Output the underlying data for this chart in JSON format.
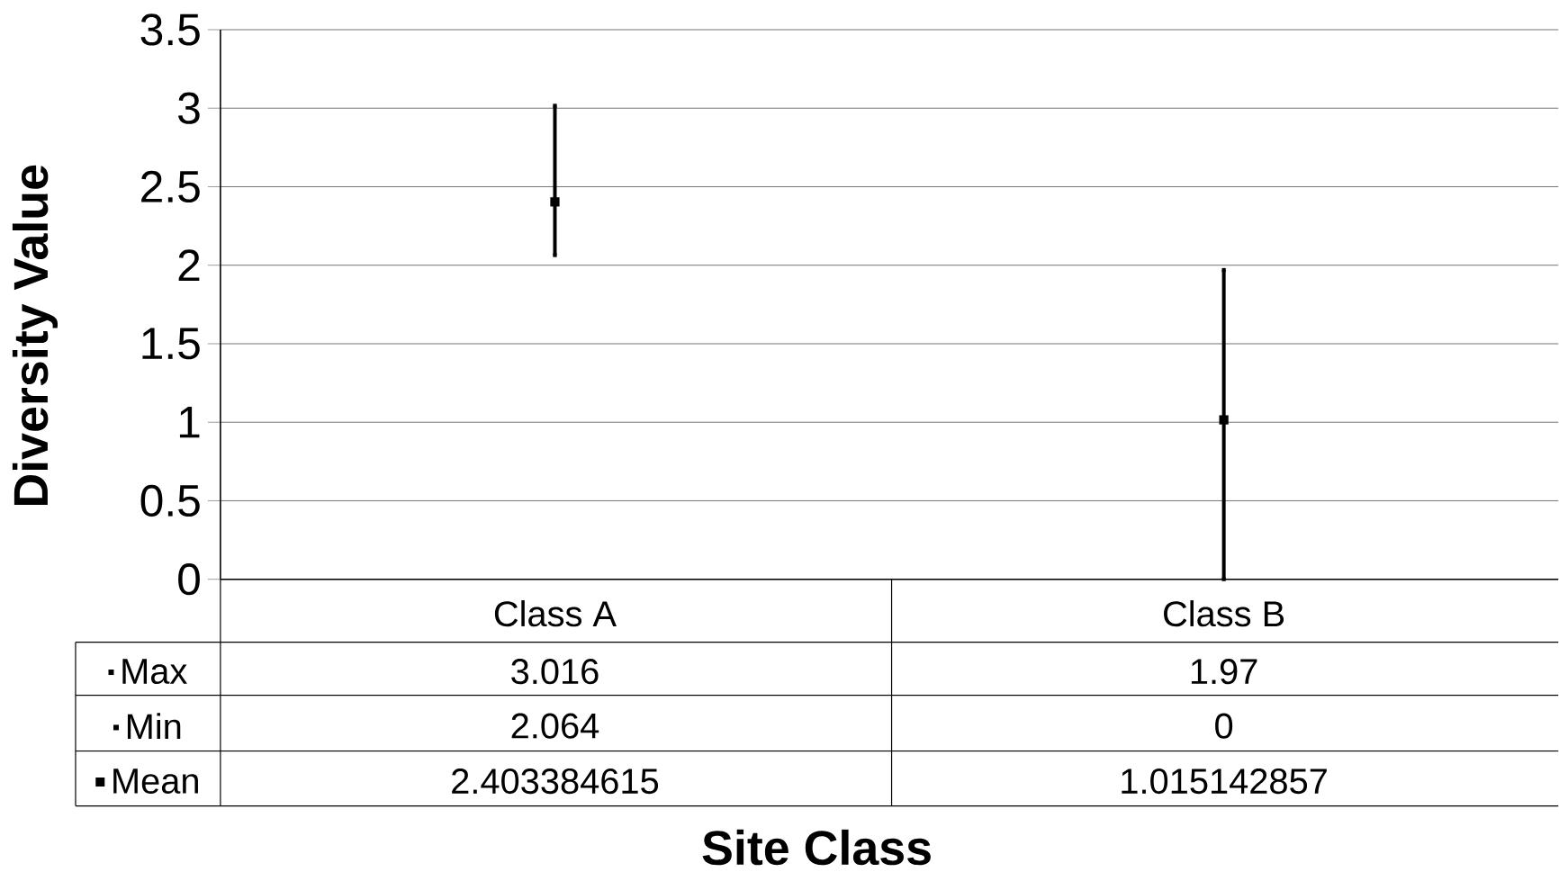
{
  "chart_data": {
    "type": "scatter",
    "xlabel": "Site Class",
    "ylabel": "Diversity Value",
    "categories": [
      "Class A",
      "Class B"
    ],
    "ylim": [
      0,
      3.5
    ],
    "yticks": [
      0,
      0.5,
      1,
      1.5,
      2,
      2.5,
      3,
      3.5
    ],
    "grid": "y",
    "data_labels": true,
    "legend": "bottom left",
    "series": [
      {
        "name": "Max",
        "color": "#000000",
        "marker": "square",
        "values": [
          3.016,
          1.97
        ]
      },
      {
        "name": "Min",
        "color": "#000000",
        "marker": "square",
        "values": [
          2.064,
          0
        ]
      },
      {
        "name": "Mean",
        "color": "#000000",
        "marker": "square",
        "values": [
          2.403384615,
          1.015142857
        ]
      }
    ]
  }
}
